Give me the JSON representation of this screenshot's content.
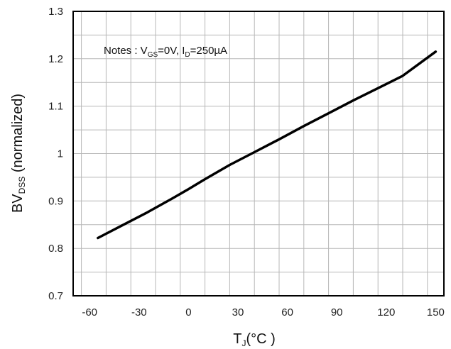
{
  "chart_data": {
    "type": "line",
    "xlabel": {
      "main": "T",
      "sub": "J",
      "unit": "(°C )"
    },
    "ylabel": {
      "main": "BV",
      "sub": "DSS",
      "rest": " (normalized)"
    },
    "annotation": {
      "prefix": "Notes : V",
      "vsub": "GS",
      "mid": "=0V, I",
      "isub": "D",
      "suffix": "=250µA"
    },
    "xlim": [
      -70,
      155
    ],
    "ylim": [
      0.7,
      1.3
    ],
    "xticks": [
      "-60",
      "-30",
      "0",
      "30",
      "60",
      "90",
      "120",
      "150"
    ],
    "yticks": [
      "0.7",
      "0.8",
      "0.9",
      "1",
      "1.1",
      "1.2",
      "1.3"
    ],
    "grid": true,
    "series": [
      {
        "x": [
          -55,
          -40,
          -25,
          -10,
          0,
          10,
          25,
          40,
          55,
          70,
          85,
          100,
          115,
          130,
          150
        ],
        "y": [
          0.822,
          0.849,
          0.876,
          0.905,
          0.925,
          0.946,
          0.976,
          1.003,
          1.03,
          1.058,
          1.085,
          1.112,
          1.138,
          1.164,
          1.215
        ]
      }
    ],
    "line_color": "#000000",
    "grid_color": "#b7b7b7"
  }
}
